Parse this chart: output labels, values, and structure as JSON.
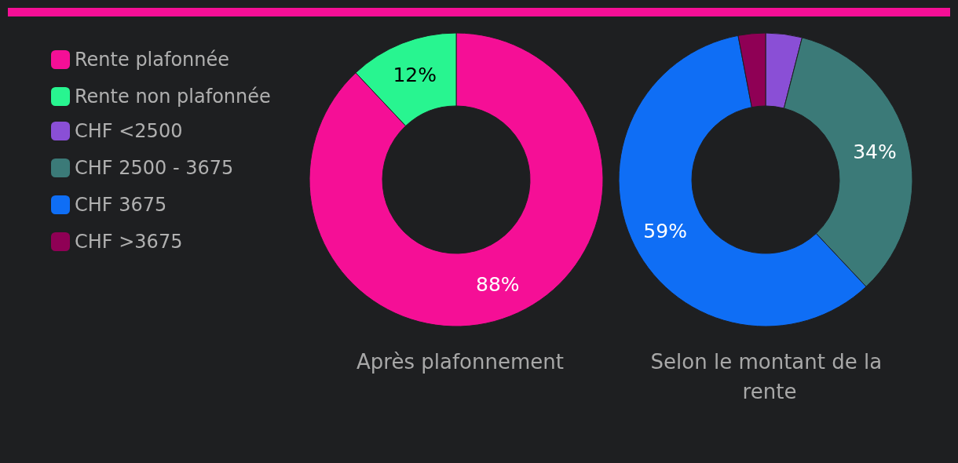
{
  "chart_data": [
    {
      "type": "donut",
      "title": "Après plafonnement",
      "categories": [
        "Rente plafonnée",
        "Rente non plafonnée"
      ],
      "values": [
        88,
        12
      ],
      "colors": [
        "#f50f96",
        "#28f590"
      ],
      "value_labels": [
        "88%",
        "12%"
      ],
      "legend": "left"
    },
    {
      "type": "donut",
      "title": "Selon le montant de la rente",
      "categories": [
        "CHF <2500",
        "CHF 2500 - 3675",
        "CHF 3675",
        "CHF >3675"
      ],
      "values": [
        4,
        34,
        59,
        3
      ],
      "colors": [
        "#8a4fd6",
        "#3b7a78",
        "#0f6ef5",
        "#8f0055"
      ],
      "value_labels": [
        null,
        "34%",
        "59%",
        null
      ],
      "legend": "left"
    }
  ]
}
